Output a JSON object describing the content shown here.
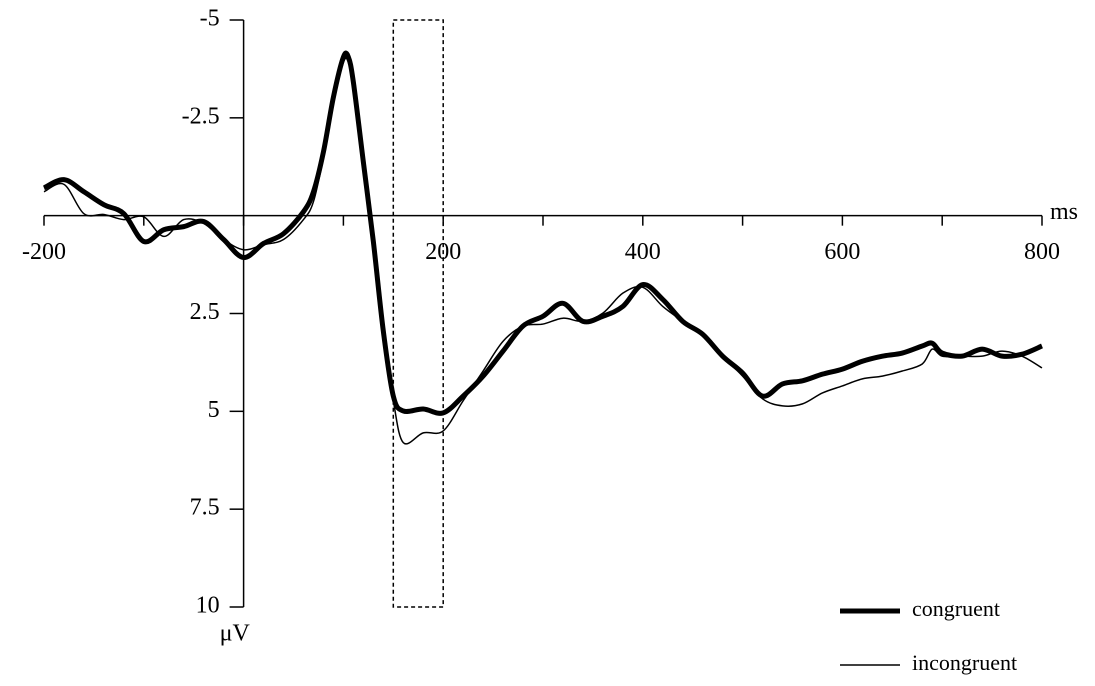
{
  "chart_data": {
    "type": "line",
    "x_label": "ms",
    "y_label": "μV",
    "xlim": [
      -200,
      800
    ],
    "xticks": [
      -200,
      200,
      400,
      600,
      800
    ],
    "xminorticks": [
      -100,
      0,
      100,
      300,
      500,
      700
    ],
    "ylim": [
      -5,
      10
    ],
    "yticks": [
      -5,
      -2.5,
      2.5,
      5,
      7.5,
      10
    ],
    "y_inverted": true,
    "highlight_window": {
      "x": [
        150,
        200
      ],
      "y": [
        -5,
        10
      ]
    },
    "x": [
      -200,
      -180,
      -160,
      -140,
      -120,
      -100,
      -80,
      -60,
      -40,
      -20,
      0,
      20,
      40,
      60,
      70,
      80,
      90,
      100,
      105,
      110,
      120,
      130,
      140,
      150,
      160,
      180,
      200,
      220,
      240,
      260,
      280,
      300,
      320,
      340,
      360,
      380,
      400,
      420,
      440,
      460,
      480,
      500,
      520,
      540,
      560,
      580,
      600,
      620,
      640,
      660,
      680,
      690,
      700,
      720,
      740,
      760,
      780,
      800
    ],
    "series": [
      {
        "name": "congruent",
        "color": "#000000",
        "width": 5,
        "values": [
          -0.71,
          -0.92,
          -0.61,
          -0.28,
          -0.05,
          0.66,
          0.36,
          0.28,
          0.15,
          0.61,
          1.07,
          0.71,
          0.46,
          -0.1,
          -0.61,
          -1.63,
          -3.03,
          -4.05,
          -4.05,
          -3.41,
          -1.37,
          0.66,
          2.95,
          4.61,
          4.99,
          4.94,
          5.04,
          4.61,
          4.1,
          3.46,
          2.82,
          2.57,
          2.24,
          2.7,
          2.57,
          2.32,
          1.76,
          2.14,
          2.7,
          3.03,
          3.59,
          4.02,
          4.61,
          4.3,
          4.22,
          4.05,
          3.92,
          3.72,
          3.59,
          3.51,
          3.33,
          3.26,
          3.51,
          3.59,
          3.41,
          3.59,
          3.54,
          3.33
        ]
      },
      {
        "name": "incongruent",
        "color": "#000000",
        "width": 1.5,
        "values": [
          -0.61,
          -0.8,
          -0.05,
          -0.03,
          0.1,
          0.03,
          0.53,
          0.1,
          0.2,
          0.61,
          0.87,
          0.74,
          0.61,
          0.1,
          -0.36,
          -1.5,
          -2.9,
          -3.92,
          -3.92,
          -3.28,
          -1.25,
          0.79,
          3.08,
          4.73,
          5.8,
          5.55,
          5.5,
          4.73,
          3.97,
          3.21,
          2.82,
          2.77,
          2.62,
          2.7,
          2.49,
          1.98,
          1.83,
          2.32,
          2.7,
          3.08,
          3.59,
          4.1,
          4.68,
          4.86,
          4.81,
          4.53,
          4.35,
          4.17,
          4.1,
          3.97,
          3.79,
          3.41,
          3.59,
          3.59,
          3.59,
          3.46,
          3.59,
          3.89
        ]
      }
    ]
  }
}
